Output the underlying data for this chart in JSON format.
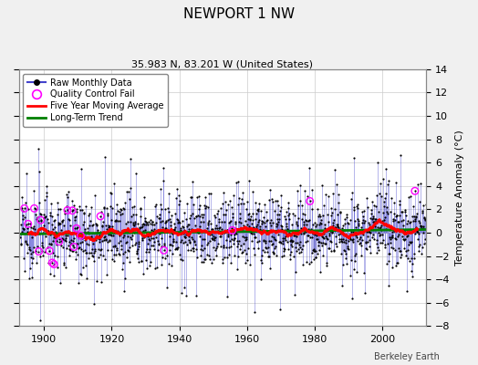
{
  "title": "NEWPORT 1 NW",
  "subtitle": "35.983 N, 83.201 W (United States)",
  "ylabel": "Temperature Anomaly (°C)",
  "attribution": "Berkeley Earth",
  "year_start": 1893,
  "year_end": 2012,
  "ylim": [
    -8,
    14
  ],
  "yticks": [
    -8,
    -6,
    -4,
    -2,
    0,
    2,
    4,
    6,
    8,
    10,
    12,
    14
  ],
  "xticks": [
    1900,
    1920,
    1940,
    1960,
    1980,
    2000
  ],
  "bg_color": "#f0f0f0",
  "plot_bg_color": "#ffffff",
  "raw_line_color": "#4444cc",
  "raw_marker_color": "black",
  "qc_fail_color": "magenta",
  "moving_avg_color": "red",
  "trend_color": "green",
  "seed": 12345
}
